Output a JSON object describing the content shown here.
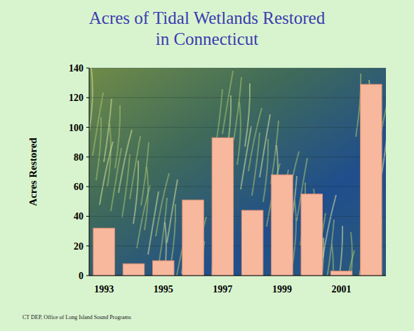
{
  "chart_data": {
    "type": "bar",
    "title": "Acres of Tidal Wetlands Restored in Connecticut",
    "y_label": "Acres Restored",
    "categories": [
      "1993",
      null,
      "1995",
      null,
      "1997",
      null,
      "1999",
      null,
      "2001",
      null
    ],
    "values": [
      32,
      8,
      10,
      51,
      93,
      44,
      68,
      55,
      3,
      129
    ],
    "color": "#f8b89e",
    "ylim": [
      0,
      140
    ],
    "yticks": [
      0,
      20,
      40,
      60,
      80,
      100,
      120,
      140
    ],
    "grid": true,
    "annotations": [
      "CT DEP, Office of Long Island Sound Programs"
    ]
  }
}
